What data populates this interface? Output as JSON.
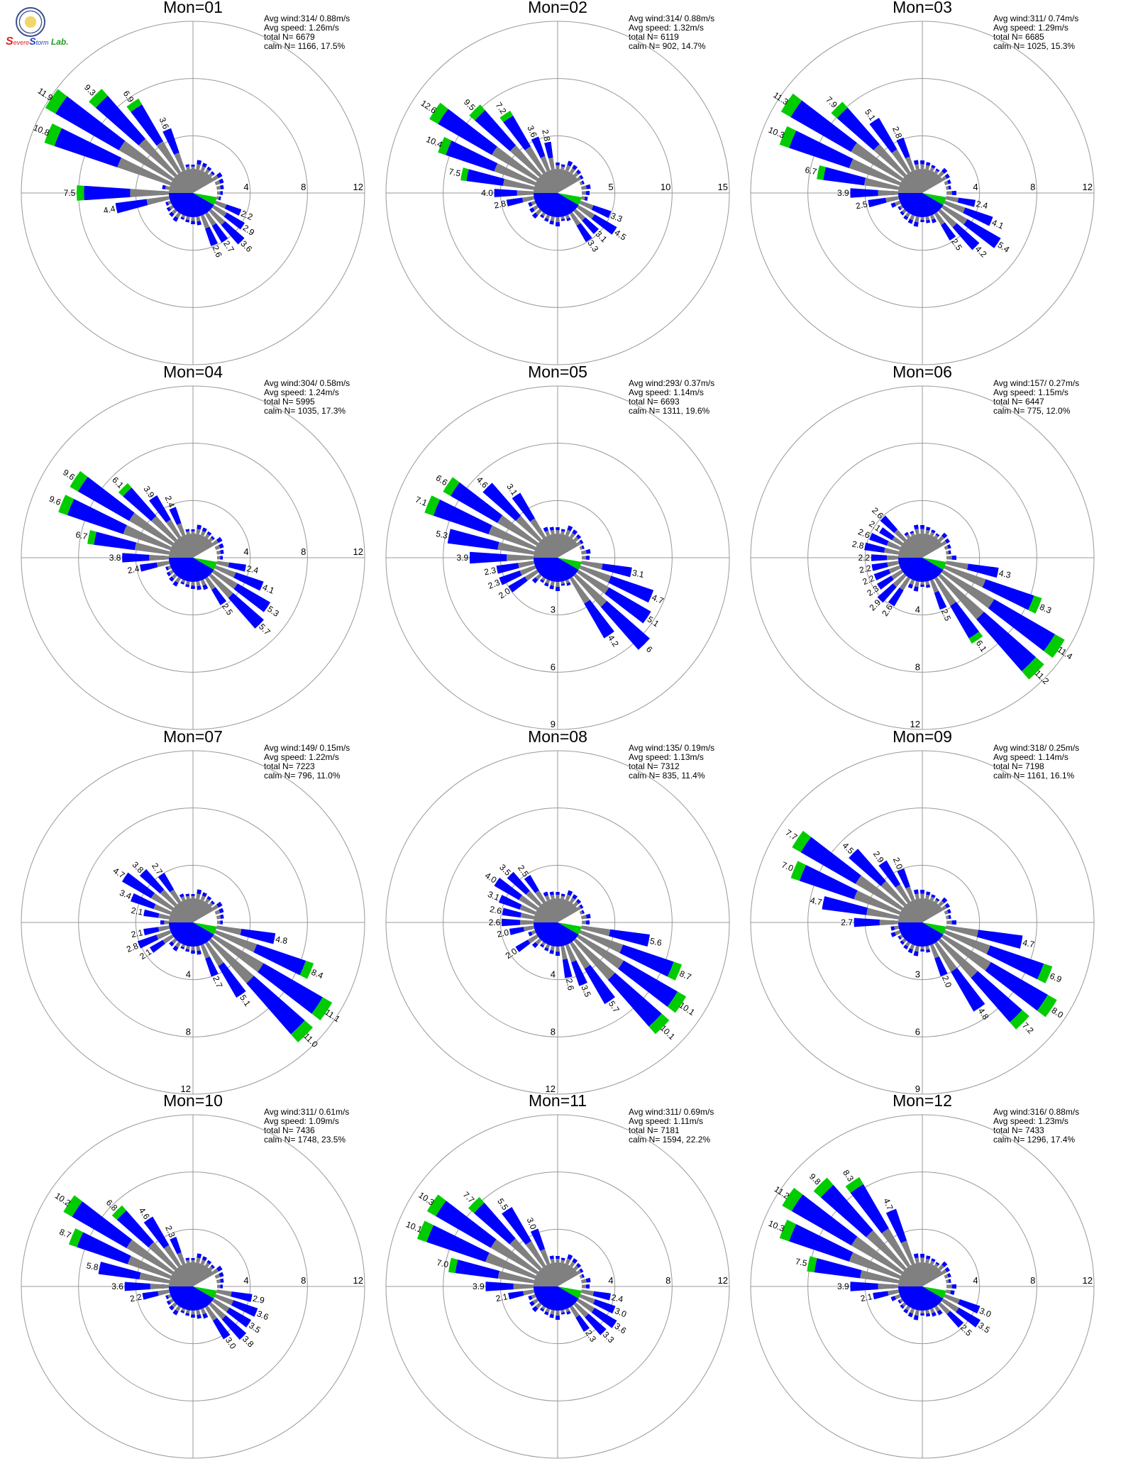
{
  "colors": {
    "blue": "#0000ff",
    "green": "#00cc00",
    "gray": "#808080",
    "axis": "#999999"
  },
  "logo": {
    "s1": "S",
    "evere": "evere",
    "s2": "S",
    "torm": "torm",
    "lab": "Lab."
  },
  "chart_data": [
    {
      "type": "wind-rose",
      "title": "Mon=01",
      "rmax": 12,
      "ticks": [
        "4",
        "8",
        "12"
      ],
      "tick_side": "east",
      "stats": [
        "Avg wind:314/ 0.88m/s",
        "Avg speed: 1.26m/s",
        "total N=      6679",
        "calm N=   1166,  17.5%"
      ],
      "dirs": [
        292.5,
        303.75,
        315,
        326.25,
        337.5,
        270,
        258.75,
        112.5,
        123.75,
        135,
        146.25,
        157.5
      ],
      "values": [
        10.8,
        11.9,
        9.3,
        6.9,
        3.6,
        7.5,
        4.4,
        2.2,
        2.9,
        3.6,
        2.7,
        2.6
      ],
      "labels": [
        "10.8",
        "11.9",
        "9.3",
        "6.9",
        "3.6",
        "7.5",
        "4.4",
        "2.2",
        "2.9",
        "3.6",
        "2.7",
        "2.6"
      ]
    },
    {
      "type": "wind-rose",
      "title": "Mon=02",
      "rmax": 15,
      "ticks": [
        "5",
        "10",
        "15"
      ],
      "tick_side": "east",
      "stats": [
        "Avg wind:314/ 0.88m/s",
        "Avg speed: 1.32m/s",
        "total N=      6119",
        "calm N=    902,  14.7%"
      ],
      "dirs": [
        303.75,
        292.5,
        315,
        326.25,
        337.5,
        348.75,
        281.25,
        270,
        258.75,
        112.5,
        123.75,
        135,
        146.25
      ],
      "values": [
        12.6,
        10.4,
        9.5,
        7.2,
        3.6,
        2.8,
        7.5,
        4.0,
        2.8,
        3.3,
        4.5,
        3.1,
        3.3
      ],
      "labels": [
        "12.6",
        "10.4",
        "9.5",
        "7.2",
        "3.6",
        "2.8",
        "7.5",
        "4.0",
        "2.8",
        "3.3",
        "4.5",
        "3.1",
        "3.3"
      ]
    },
    {
      "type": "wind-rose",
      "title": "Mon=03",
      "rmax": 12,
      "ticks": [
        "4",
        "8",
        "12"
      ],
      "tick_side": "east",
      "stats": [
        "Avg wind:311/ 0.74m/s",
        "Avg speed: 1.29m/s",
        "total N=      6685",
        "calm N=   1025,  15.3%"
      ],
      "dirs": [
        303.75,
        292.5,
        315,
        326.25,
        337.5,
        281.25,
        270,
        258.75,
        101.25,
        112.5,
        123.75,
        135,
        146.25
      ],
      "values": [
        11.3,
        10.3,
        7.9,
        5.1,
        2.8,
        6.7,
        3.9,
        2.5,
        2.4,
        4.1,
        5.4,
        4.2,
        2.5
      ],
      "labels": [
        "11.3",
        "10.3",
        "7.9",
        "5.1",
        "2.8",
        "6.7",
        "3.9",
        "2.5",
        "2.4",
        "4.1",
        "5.4",
        "4.2",
        "2.5"
      ]
    },
    {
      "type": "wind-rose",
      "title": "Mon=04",
      "rmax": 12,
      "ticks": [
        "4",
        "8",
        "12"
      ],
      "tick_side": "east",
      "stats": [
        "Avg wind:304/ 0.58m/s",
        "Avg speed: 1.24m/s",
        "total N=      5995",
        "calm N=   1035,  17.3%"
      ],
      "dirs": [
        303.75,
        292.5,
        315,
        326.25,
        337.5,
        281.25,
        270,
        258.75,
        101.25,
        112.5,
        123.75,
        135,
        146.25
      ],
      "values": [
        9.6,
        9.6,
        6.1,
        3.9,
        2.4,
        6.7,
        3.8,
        2.4,
        2.4,
        4.1,
        5.3,
        5.7,
        2.5
      ],
      "labels": [
        "9.6",
        "9.6",
        "6.1",
        "3.9",
        "2.4",
        "6.7",
        "3.8",
        "2.4",
        "2.4",
        "4.1",
        "5.3",
        "5.7",
        "2.5"
      ]
    },
    {
      "type": "wind-rose",
      "title": "Mon=05",
      "rmax": 9,
      "ticks": [
        "3",
        "6",
        "9"
      ],
      "tick_side": "south",
      "stats": [
        "Avg wind:293/ 0.37m/s",
        "Avg speed: 1.14m/s",
        "total N=      6693",
        "calm N=   1311,  19.6%"
      ],
      "dirs": [
        292.5,
        303.75,
        315,
        326.25,
        281.25,
        270,
        258.75,
        247.5,
        236.25,
        101.25,
        112.5,
        123.75,
        135,
        146.25
      ],
      "values": [
        7.1,
        6.6,
        4.6,
        3.1,
        5.3,
        3.9,
        2.3,
        2.3,
        2.0,
        3.1,
        4.7,
        5.1,
        6.0,
        4.2
      ],
      "labels": [
        "7.1",
        "6.6",
        "4.6",
        "3.1",
        "5.3",
        "3.9",
        "2.3",
        "2.3",
        "2.0",
        "3.1",
        "4.7",
        "5.1",
        "6",
        "4.2"
      ]
    },
    {
      "type": "wind-rose",
      "title": "Mon=06",
      "rmax": 12,
      "ticks": [
        "4",
        "8",
        "12"
      ],
      "tick_side": "south",
      "stats": [
        "Avg wind:157/ 0.27m/s",
        "Avg speed: 1.15m/s",
        "total N=      6447",
        "calm N=    775,  12.0%"
      ],
      "dirs": [
        101.25,
        112.5,
        123.75,
        135,
        146.25,
        157.5,
        315,
        303.75,
        292.5,
        281.25,
        270,
        258.75,
        247.5,
        236.25,
        225,
        213.75
      ],
      "values": [
        4.3,
        8.3,
        11.4,
        11.2,
        6.1,
        2.5,
        2.6,
        2.1,
        2.6,
        2.8,
        2.2,
        2.2,
        2.2,
        2.3,
        2.9,
        2.6
      ],
      "labels": [
        "4.3",
        "8.3",
        "11.4",
        "11.2",
        "6.1",
        "2.5",
        "2.6",
        "2.1",
        "2.6",
        "2.8",
        "2.2",
        "2.2",
        "2.2",
        "2.3",
        "2.9",
        "2.6"
      ]
    },
    {
      "type": "wind-rose",
      "title": "Mon=07",
      "rmax": 12,
      "ticks": [
        "4",
        "8",
        "12"
      ],
      "tick_side": "south",
      "stats": [
        "Avg wind:149/ 0.15m/s",
        "Avg speed: 1.22m/s",
        "total N=      7223",
        "calm N=    796,  11.0%"
      ],
      "dirs": [
        101.25,
        112.5,
        123.75,
        135,
        146.25,
        157.5,
        303.75,
        315,
        326.25,
        292.5,
        281.25,
        258.75,
        247.5,
        236.25
      ],
      "values": [
        4.8,
        8.4,
        11.1,
        11.0,
        5.1,
        2.7,
        4.7,
        3.8,
        2.7,
        3.4,
        2.1,
        2.1,
        2.8,
        2.1
      ],
      "labels": [
        "4.8",
        "8.4",
        "11.1",
        "11.0",
        "5.1",
        "2.7",
        "4.7",
        "3.8",
        "2.7",
        "3.4",
        "2.1",
        "2.1",
        "2.8",
        "2.1"
      ]
    },
    {
      "type": "wind-rose",
      "title": "Mon=08",
      "rmax": 12,
      "ticks": [
        "4",
        "8",
        "12"
      ],
      "tick_side": "south",
      "stats": [
        "Avg wind:135/ 0.19m/s",
        "Avg speed: 1.13m/s",
        "total N=      7312",
        "calm N=    835,  11.4%"
      ],
      "dirs": [
        101.25,
        112.5,
        123.75,
        135,
        146.25,
        157.5,
        168.75,
        303.75,
        315,
        326.25,
        292.5,
        281.25,
        270,
        258.75,
        236.25
      ],
      "values": [
        5.6,
        8.7,
        10.1,
        10.1,
        5.7,
        3.5,
        2.6,
        4.0,
        3.5,
        2.5,
        3.1,
        2.6,
        2.6,
        2.0,
        2.0
      ],
      "labels": [
        "5.6",
        "8.7",
        "10.1",
        "10.1",
        "5.7",
        "3.5",
        "2.6",
        "4.0",
        "3.5",
        "2.5",
        "3.1",
        "2.6",
        "2.6",
        "2.0",
        "2.0"
      ]
    },
    {
      "type": "wind-rose",
      "title": "Mon=09",
      "rmax": 9,
      "ticks": [
        "3",
        "6",
        "9"
      ],
      "tick_side": "south",
      "stats": [
        "Avg wind:318/ 0.25m/s",
        "Avg speed: 1.14m/s",
        "total N=      7198",
        "calm N=   1161,  16.1%"
      ],
      "dirs": [
        303.75,
        292.5,
        315,
        326.25,
        337.5,
        281.25,
        270,
        101.25,
        112.5,
        123.75,
        135,
        146.25,
        157.5
      ],
      "values": [
        7.7,
        7.0,
        4.5,
        2.9,
        2.0,
        4.7,
        2.7,
        4.7,
        6.9,
        8.0,
        7.2,
        4.8,
        2.0
      ],
      "labels": [
        "7.7",
        "7.0",
        "4.5",
        "2.9",
        "2.0",
        "4.7",
        "2.7",
        "4.7",
        "6.9",
        "8.0",
        "7.2",
        "4.8",
        "2.0"
      ]
    },
    {
      "type": "wind-rose",
      "title": "Mon=10",
      "rmax": 12,
      "ticks": [
        "4",
        "8",
        "12"
      ],
      "tick_side": "east",
      "stats": [
        "Avg wind:311/ 0.61m/s",
        "Avg speed: 1.09m/s",
        "total N=      7436",
        "calm N=   1748,  23.5%"
      ],
      "dirs": [
        303.75,
        292.5,
        315,
        326.25,
        337.5,
        281.25,
        270,
        258.75,
        101.25,
        112.5,
        123.75,
        135,
        146.25
      ],
      "values": [
        10.2,
        8.7,
        6.8,
        4.6,
        2.3,
        5.8,
        3.6,
        2.2,
        2.9,
        3.6,
        3.5,
        3.8,
        3.0
      ],
      "labels": [
        "10.2",
        "8.7",
        "6.8",
        "4.6",
        "2.3",
        "5.8",
        "3.6",
        "2.2",
        "2.9",
        "3.6",
        "3.5",
        "3.8",
        "3.0"
      ]
    },
    {
      "type": "wind-rose",
      "title": "Mon=11",
      "rmax": 12,
      "ticks": [
        "4",
        "8",
        "12"
      ],
      "tick_side": "east",
      "stats": [
        "Avg wind:311/ 0.69m/s",
        "Avg speed: 1.11m/s",
        "total N=      7181",
        "calm N=   1594,  22.2%"
      ],
      "dirs": [
        303.75,
        292.5,
        315,
        326.25,
        337.5,
        281.25,
        270,
        258.75,
        101.25,
        112.5,
        123.75,
        135,
        146.25
      ],
      "values": [
        10.3,
        10.1,
        7.7,
        5.5,
        3.0,
        7.0,
        3.9,
        2.1,
        2.4,
        3.0,
        3.6,
        3.3,
        2.3
      ],
      "labels": [
        "10.3",
        "10.1",
        "7.7",
        "5.5",
        "3.0",
        "7.0",
        "3.9",
        "2.1",
        "2.4",
        "3.0",
        "3.6",
        "3.3",
        "2.3"
      ]
    },
    {
      "type": "wind-rose",
      "title": "Mon=12",
      "rmax": 12,
      "ticks": [
        "4",
        "8",
        "12"
      ],
      "tick_side": "east",
      "stats": [
        "Avg wind:316/ 0.88m/s",
        "Avg speed: 1.23m/s",
        "total N=      7433",
        "calm N=   1296,  17.4%"
      ],
      "dirs": [
        303.75,
        292.5,
        315,
        326.25,
        337.5,
        281.25,
        270,
        258.75,
        112.5,
        123.75,
        135
      ],
      "values": [
        11.2,
        10.3,
        9.8,
        8.3,
        4.7,
        7.5,
        3.9,
        2.1,
        3.0,
        3.5,
        2.5
      ],
      "labels": [
        "11.2",
        "10.3",
        "9.8",
        "8.3",
        "4.7",
        "7.5",
        "3.9",
        "2.1",
        "3.0",
        "3.5",
        "2.5"
      ]
    }
  ]
}
